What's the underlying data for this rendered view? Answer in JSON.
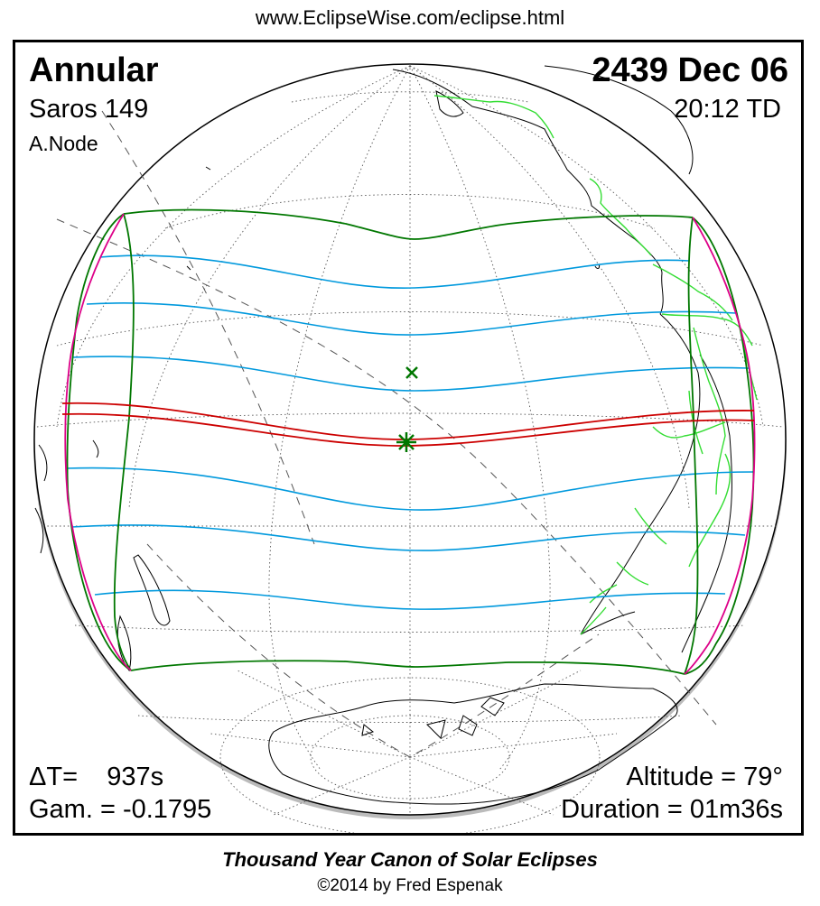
{
  "header": {
    "url": "www.EclipseWise.com/eclipse.html"
  },
  "eclipse": {
    "type": "Annular",
    "saros": "Saros 149",
    "node": "A.Node",
    "date": "2439 Dec 06",
    "time": "20:12 TD",
    "delta_t": "ΔT=    937s",
    "gamma": "Gam. = -0.1795",
    "altitude": "Altitude = 79°",
    "duration": "Duration = 01m36s"
  },
  "footer": {
    "canon": "Thousand Year Canon of Solar Eclipses",
    "copyright": "©2014 by Fred Espenak"
  },
  "colors": {
    "central_path": "#cc0000",
    "penumbral_limits": "#007700",
    "magnitude_isolines": "#0099dd",
    "rise_set_curves": "#dd0088",
    "country_borders": "#33dd33",
    "coastlines": "#000000"
  }
}
